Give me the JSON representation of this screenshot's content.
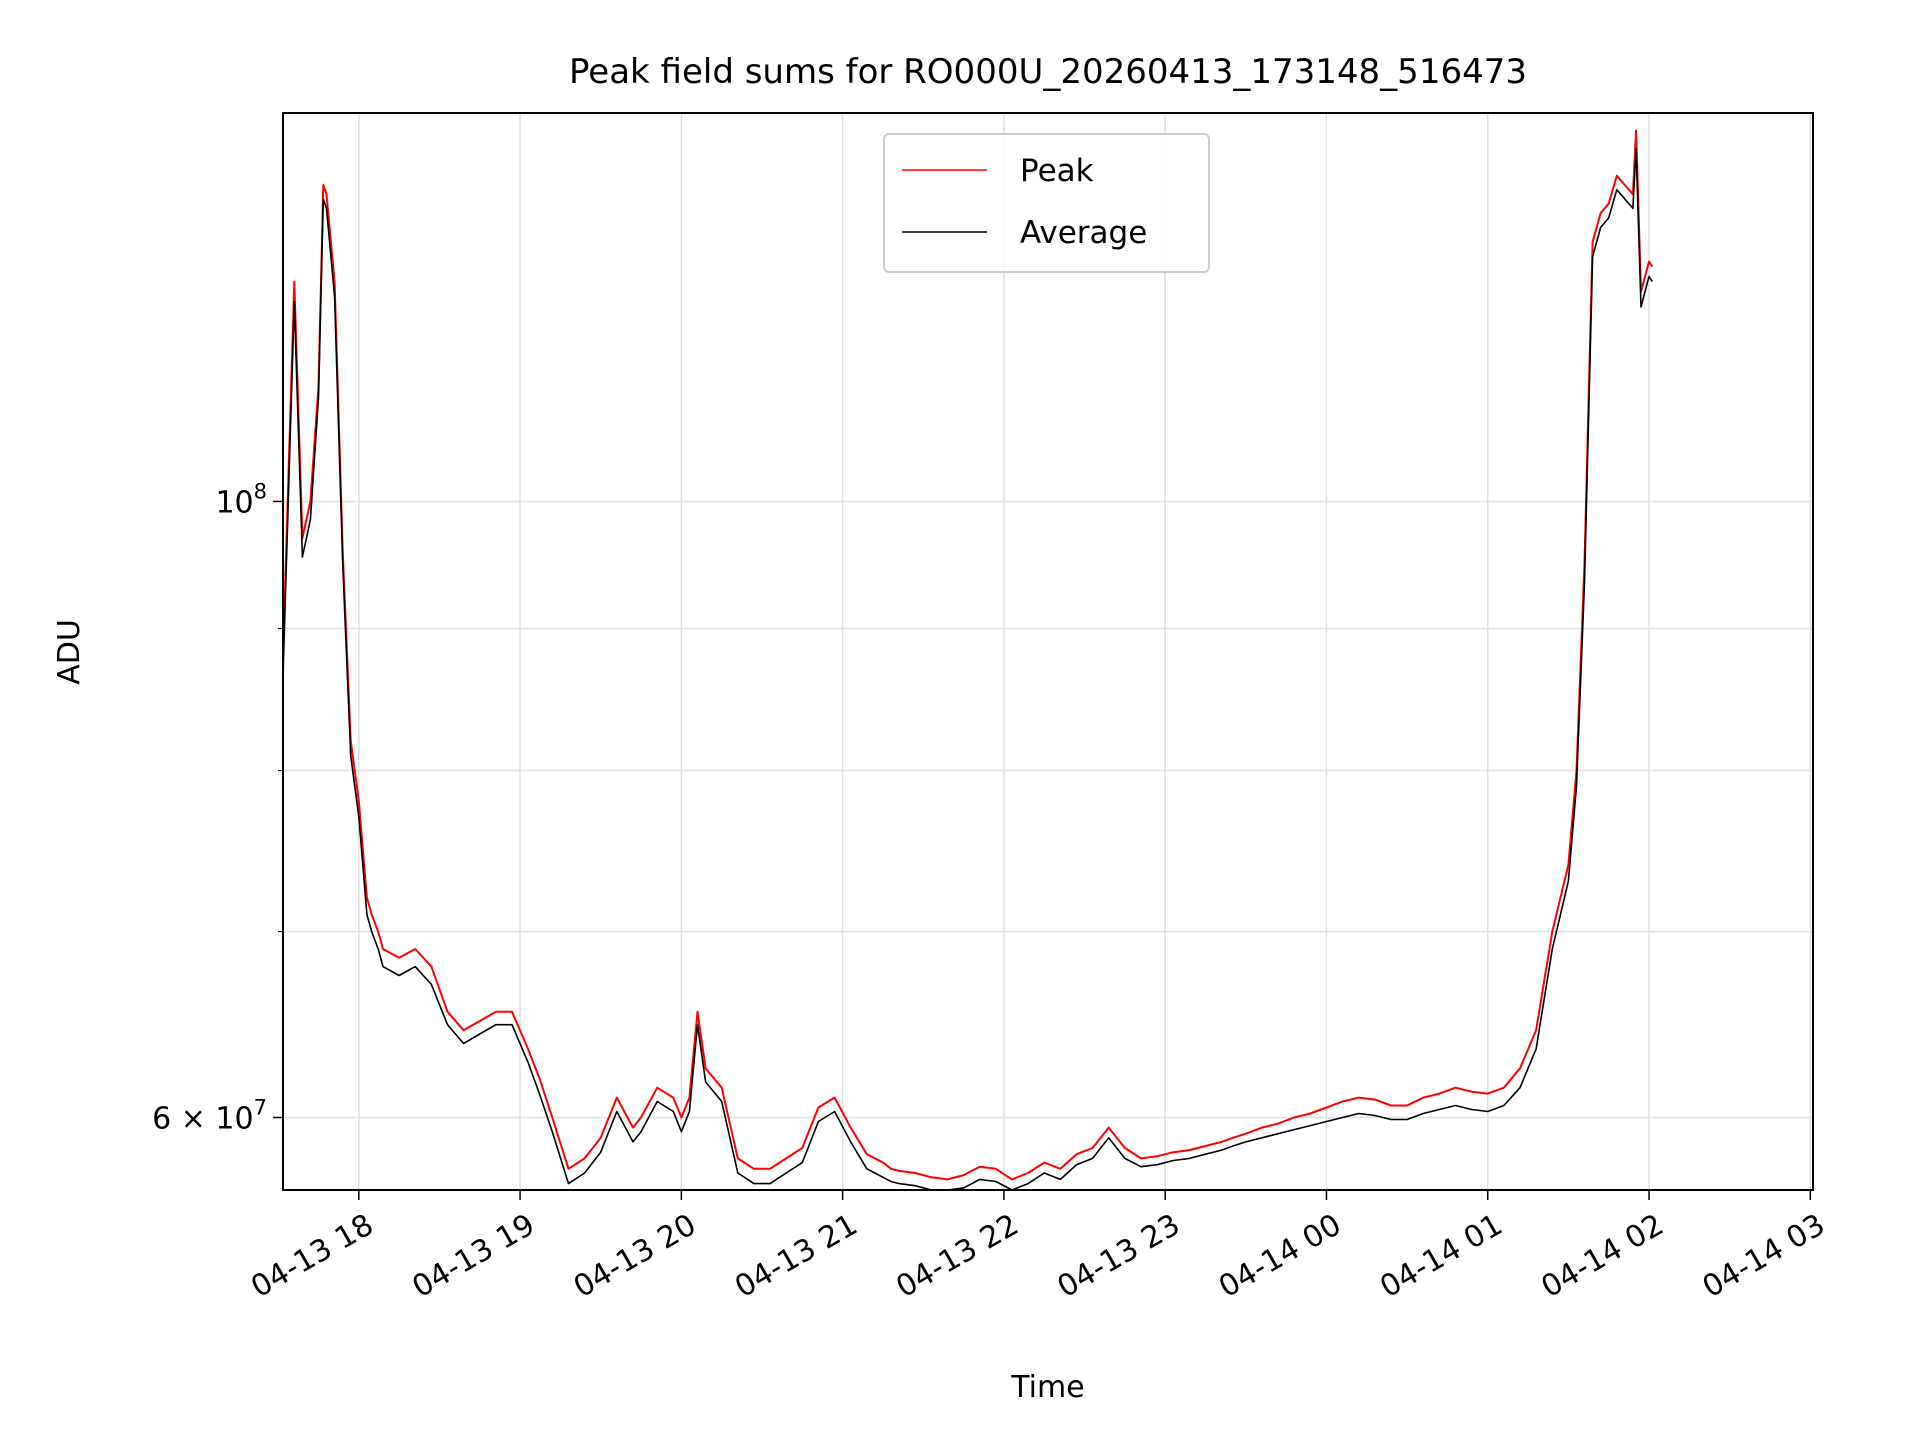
{
  "chart_data": {
    "type": "line",
    "title": "Peak field sums for RO000U_20260413_173148_516473",
    "xlabel": "Time",
    "ylabel": "ADU",
    "yscale": "log",
    "ylim": [
      56500000,
      138000000
    ],
    "xlim": [
      "2026-04-13 17:31:48",
      "2026-04-14 03:01:00"
    ],
    "x_tick_labels": [
      "04-13 18",
      "04-13 19",
      "04-13 20",
      "04-13 21",
      "04-13 22",
      "04-13 23",
      "04-14 00",
      "04-14 01",
      "04-14 02",
      "04-14 03"
    ],
    "y_tick_labels": [
      {
        "label": "10",
        "exponent": "8",
        "value": 100000000
      },
      {
        "label": "6 × 10",
        "exponent": "7",
        "value": 60000000
      }
    ],
    "y_minor_values": [
      70000000,
      80000000,
      90000000
    ],
    "grid": true,
    "legend": {
      "position": "upper-center",
      "entries": [
        {
          "name": "Peak",
          "color": "#ff0000"
        },
        {
          "name": "Average",
          "color": "#000000"
        }
      ]
    },
    "x_hours_since_1700": [
      0.53,
      0.55,
      0.6,
      0.65,
      0.7,
      0.75,
      0.78,
      0.8,
      0.85,
      0.9,
      0.95,
      1.0,
      1.05,
      1.08,
      1.12,
      1.15,
      1.25,
      1.35,
      1.45,
      1.55,
      1.65,
      1.75,
      1.85,
      1.95,
      2.05,
      2.12,
      2.2,
      2.3,
      2.4,
      2.5,
      2.6,
      2.7,
      2.75,
      2.85,
      2.95,
      3.0,
      3.05,
      3.1,
      3.15,
      3.25,
      3.35,
      3.45,
      3.55,
      3.65,
      3.75,
      3.85,
      3.95,
      4.05,
      4.15,
      4.2,
      4.25,
      4.3,
      4.35,
      4.45,
      4.55,
      4.65,
      4.75,
      4.85,
      4.95,
      5.05,
      5.15,
      5.25,
      5.35,
      5.45,
      5.55,
      5.65,
      5.75,
      5.85,
      5.95,
      6.05,
      6.15,
      6.25,
      6.35,
      6.42,
      6.5,
      6.6,
      6.7,
      6.8,
      6.9,
      7.0,
      7.1,
      7.2,
      7.3,
      7.4,
      7.5,
      7.6,
      7.7,
      7.8,
      7.9,
      8.0,
      8.1,
      8.2,
      8.3,
      8.4,
      8.5,
      8.55,
      8.6,
      8.65,
      8.7,
      8.75,
      8.8,
      8.85,
      8.9,
      8.92,
      8.95,
      9.0,
      9.02
    ],
    "series": [
      {
        "name": "Peak",
        "color": "#ff0000",
        "values": [
          88000000,
          96000000,
          120000000,
          97000000,
          100000000,
          110000000,
          130000000,
          129000000,
          120000000,
          96000000,
          82000000,
          78000000,
          72000000,
          71000000,
          70000000,
          69000000,
          68500000,
          69000000,
          68000000,
          65500000,
          64500000,
          65000000,
          65500000,
          65500000,
          63500000,
          62000000,
          60000000,
          57500000,
          58000000,
          59000000,
          61000000,
          59500000,
          60000000,
          61500000,
          61000000,
          60000000,
          61000000,
          65500000,
          62500000,
          61500000,
          58000000,
          57500000,
          57500000,
          58000000,
          58500000,
          60500000,
          61000000,
          59500000,
          58200000,
          58000000,
          57800000,
          57500000,
          57400000,
          57300000,
          57100000,
          57000000,
          57200000,
          57600000,
          57500000,
          57000000,
          57300000,
          57800000,
          57500000,
          58200000,
          58500000,
          59500000,
          58500000,
          58000000,
          58100000,
          58300000,
          58400000,
          58600000,
          58800000,
          59000000,
          59200000,
          59500000,
          59700000,
          60000000,
          60200000,
          60500000,
          60800000,
          61000000,
          60900000,
          60600000,
          60600000,
          61000000,
          61200000,
          61500000,
          61300000,
          61200000,
          61500000,
          62500000,
          64500000,
          70000000,
          74000000,
          80000000,
          95000000,
          124000000,
          127000000,
          128000000,
          131000000,
          130000000,
          129000000,
          136000000,
          119000000,
          122000000,
          121500000
        ]
      },
      {
        "name": "Average",
        "color": "#000000",
        "values": [
          86500000,
          94500000,
          118000000,
          95500000,
          98500000,
          109000000,
          128500000,
          127500000,
          118500000,
          95000000,
          81000000,
          77000000,
          71000000,
          70000000,
          69000000,
          68000000,
          67500000,
          68000000,
          67000000,
          64800000,
          63800000,
          64300000,
          64800000,
          64800000,
          62800000,
          61200000,
          59300000,
          56800000,
          57300000,
          58300000,
          60300000,
          58800000,
          59300000,
          60800000,
          60300000,
          59300000,
          60300000,
          64800000,
          61800000,
          60800000,
          57300000,
          56800000,
          56800000,
          57300000,
          57800000,
          59800000,
          60300000,
          58800000,
          57500000,
          57300000,
          57100000,
          56900000,
          56800000,
          56700000,
          56500000,
          56500000,
          56600000,
          57000000,
          56900000,
          56500000,
          56800000,
          57300000,
          57000000,
          57700000,
          58000000,
          59000000,
          58000000,
          57600000,
          57700000,
          57900000,
          58000000,
          58200000,
          58400000,
          58600000,
          58800000,
          59000000,
          59200000,
          59400000,
          59600000,
          59800000,
          60000000,
          60200000,
          60100000,
          59900000,
          59900000,
          60200000,
          60400000,
          60600000,
          60400000,
          60300000,
          60600000,
          61500000,
          63500000,
          69000000,
          73000000,
          79000000,
          93500000,
          122500000,
          125500000,
          126500000,
          129500000,
          128500000,
          127500000,
          134000000,
          117500000,
          120500000,
          120000000
        ]
      }
    ]
  }
}
